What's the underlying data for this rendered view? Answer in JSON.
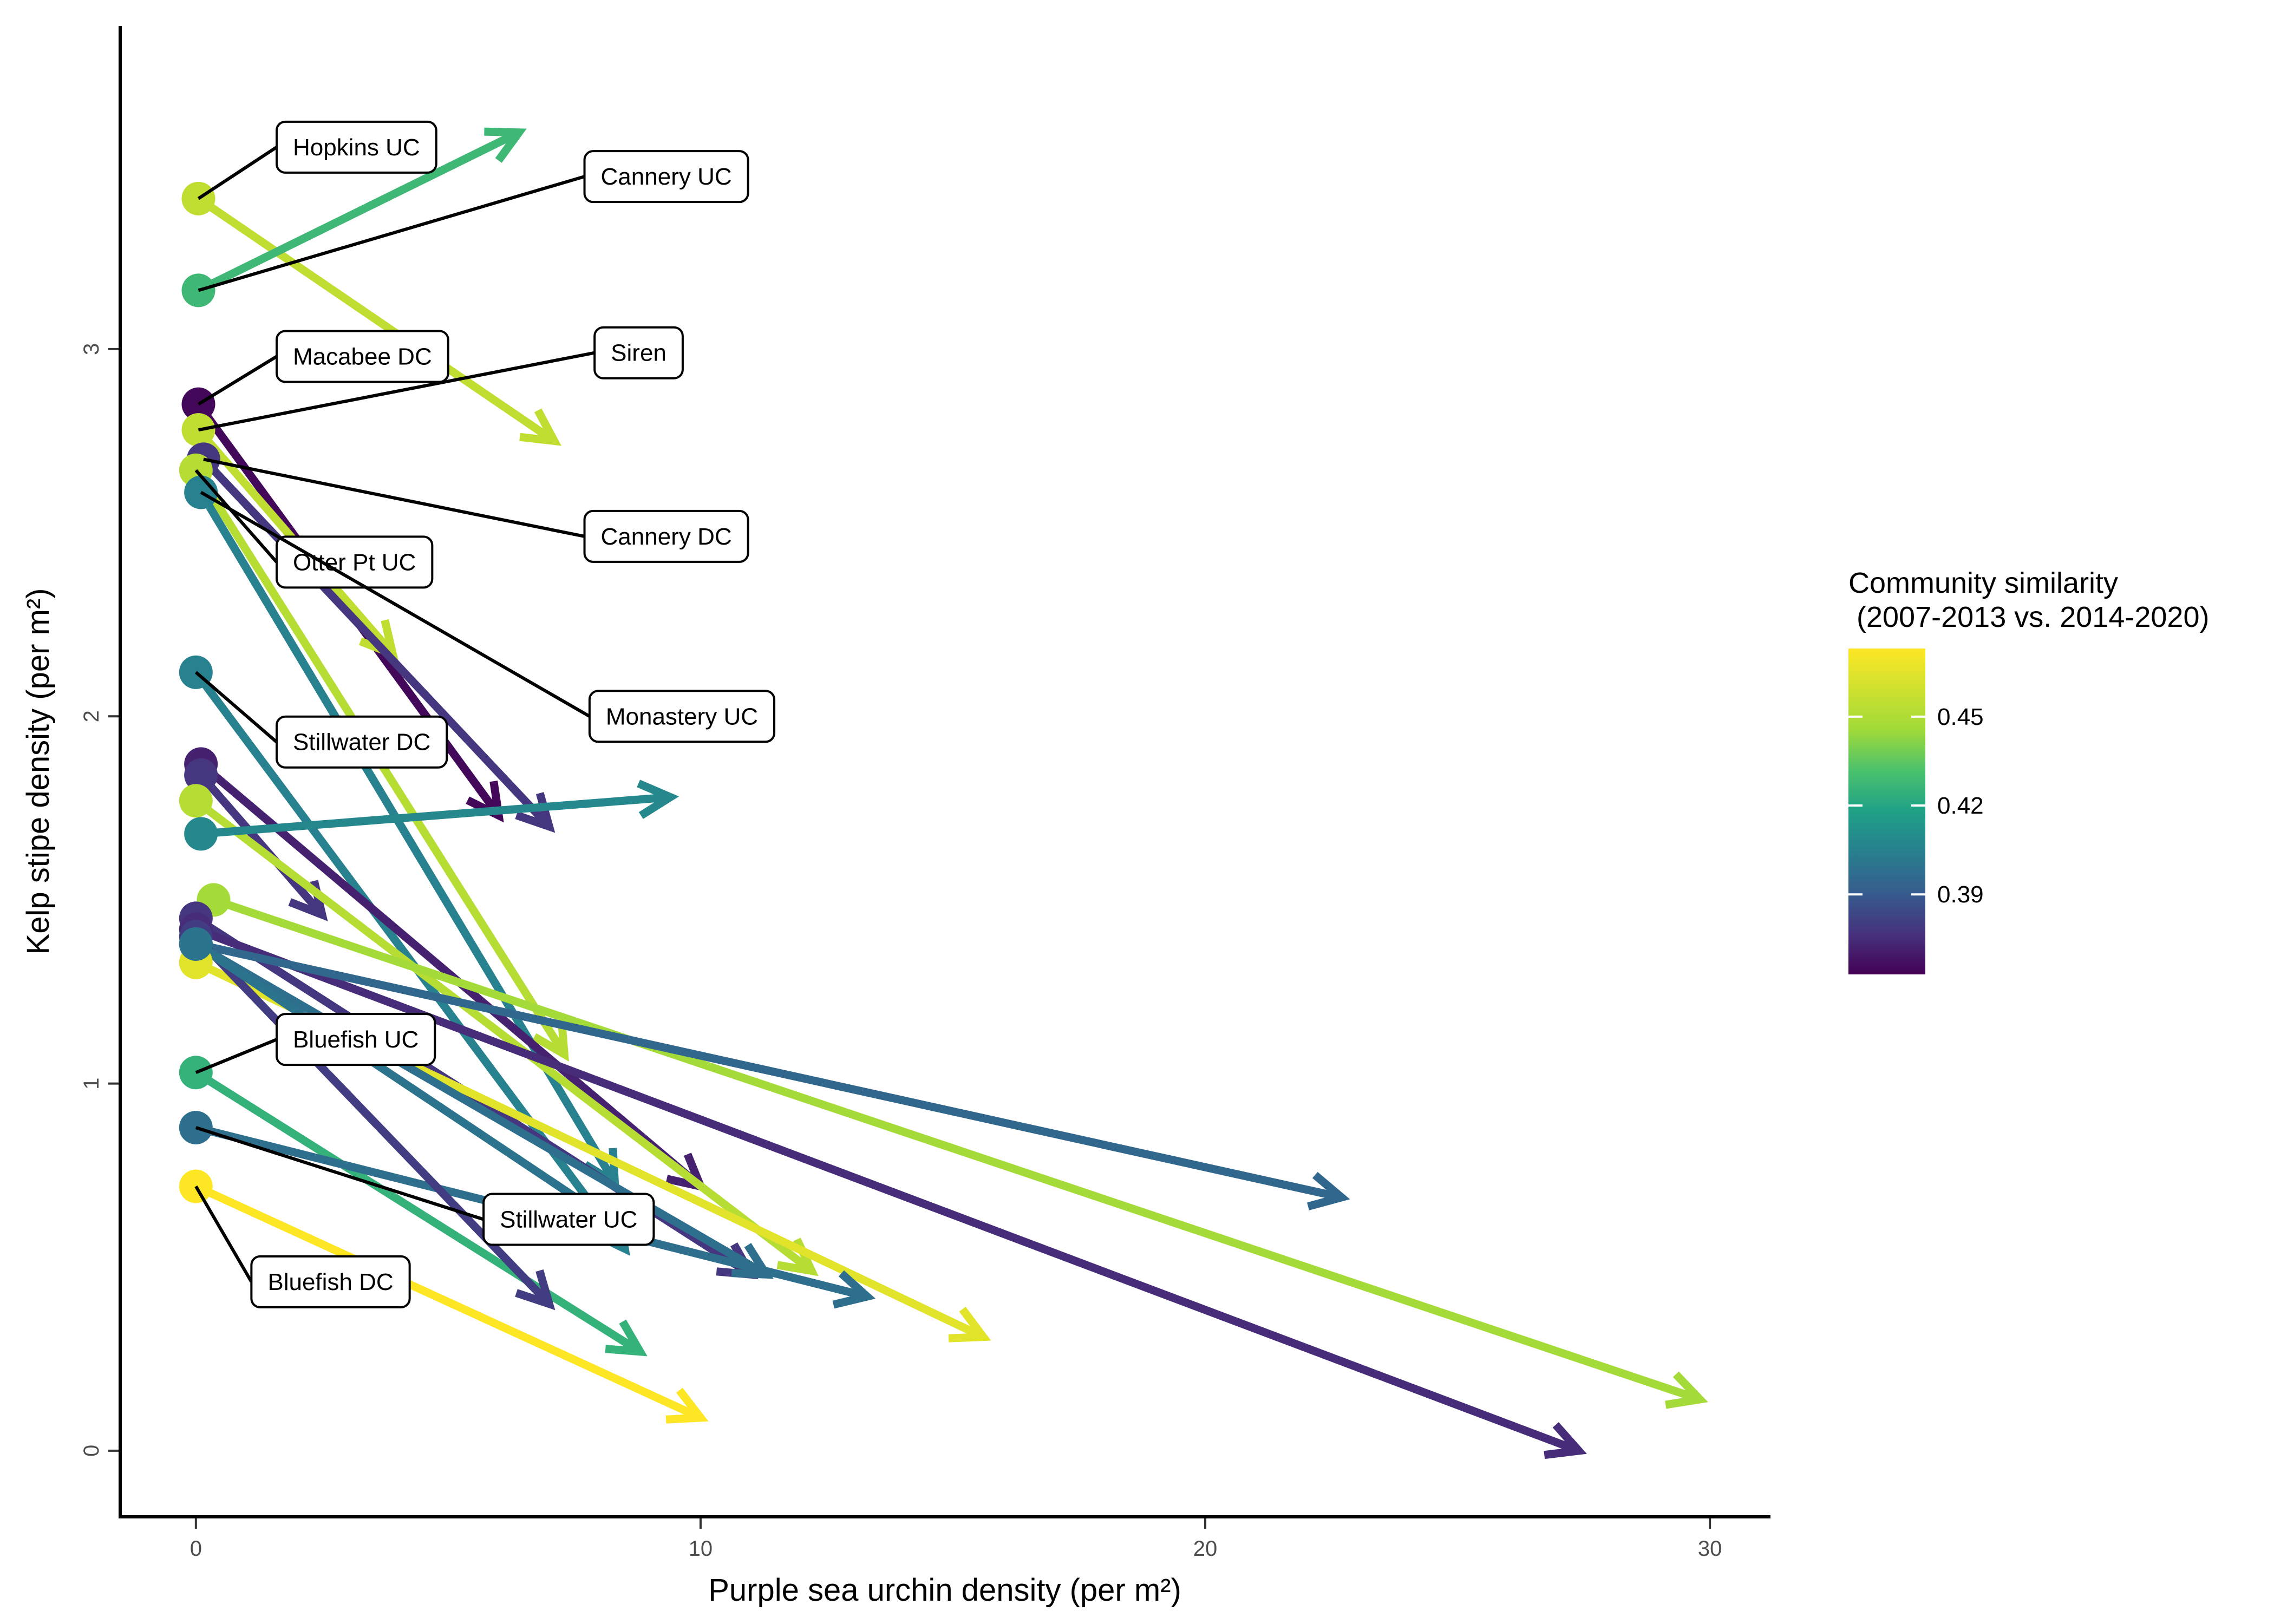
{
  "chart_data": {
    "type": "scatter",
    "subtype": "arrow-segments",
    "title": "",
    "xlabel": "Purple sea urchin density (per m²)",
    "ylabel": "Kelp stipe density (per m²)",
    "xlim": [
      -1.5,
      31.2
    ],
    "ylim": [
      -0.18,
      3.88
    ],
    "x_ticks": [
      0,
      10,
      20,
      30
    ],
    "x_tick_labels": [
      "0",
      "10",
      "20",
      "30"
    ],
    "y_ticks": [
      0,
      1,
      2,
      3
    ],
    "y_tick_labels": [
      "0",
      "1",
      "2",
      "3"
    ],
    "grid": false,
    "legend": {
      "title_line1": "Community similarity",
      "title_line2": " (2007-2013 vs. 2014-2020)",
      "placement": "right",
      "scale": "viridis",
      "min": 0.363,
      "max": 0.473,
      "ticks": [
        0.39,
        0.42,
        0.45
      ],
      "tick_labels": [
        "0.39",
        "0.42",
        "0.45"
      ]
    },
    "sites": [
      {
        "label": "Hopkins UC",
        "x0": 0.05,
        "y0": 3.41,
        "x1": 7.1,
        "y1": 2.75,
        "sim": 0.455
      },
      {
        "label": "Cannery UC",
        "x0": 0.05,
        "y0": 3.16,
        "x1": 6.4,
        "y1": 3.59,
        "sim": 0.428
      },
      {
        "label": "Macabee DC",
        "x0": 0.05,
        "y0": 2.85,
        "x1": 6.0,
        "y1": 1.73,
        "sim": 0.365
      },
      {
        "label": "Siren",
        "x0": 0.05,
        "y0": 2.78,
        "x1": 3.9,
        "y1": 2.17,
        "sim": 0.455
      },
      {
        "label": "Cannery DC",
        "x0": 0.15,
        "y0": 2.7,
        "x1": 7.0,
        "y1": 1.7,
        "sim": 0.378
      },
      {
        "label": "Otter Pt UC",
        "x0": 0.0,
        "y0": 2.67,
        "x1": 7.3,
        "y1": 1.08,
        "sim": 0.452
      },
      {
        "label": "Monastery UC",
        "x0": 0.1,
        "y0": 2.61,
        "x1": 8.3,
        "y1": 0.73,
        "sim": 0.405
      },
      {
        "label": "Stillwater DC",
        "x0": 0.0,
        "y0": 2.12,
        "x1": 8.5,
        "y1": 0.55,
        "sim": 0.405
      },
      {
        "label": "",
        "x0": 0.1,
        "y0": 1.87,
        "x1": 10.0,
        "y1": 0.72,
        "sim": 0.372
      },
      {
        "label": "",
        "x0": 0.1,
        "y0": 1.84,
        "x1": 2.5,
        "y1": 1.46,
        "sim": 0.378
      },
      {
        "label": "",
        "x0": 0.0,
        "y0": 1.77,
        "x1": 12.2,
        "y1": 0.49,
        "sim": 0.452
      },
      {
        "label": "",
        "x0": 0.1,
        "y0": 1.68,
        "x1": 9.4,
        "y1": 1.78,
        "sim": 0.408
      },
      {
        "label": "",
        "x0": 0.35,
        "y0": 1.5,
        "x1": 29.8,
        "y1": 0.14,
        "sim": 0.447
      },
      {
        "label": "",
        "x0": 0.0,
        "y0": 1.45,
        "x1": 11.0,
        "y1": 0.48,
        "sim": 0.378
      },
      {
        "label": "",
        "x0": 0.0,
        "y0": 1.42,
        "x1": 27.4,
        "y1": 0.0,
        "sim": 0.375
      },
      {
        "label": "",
        "x0": 0.0,
        "y0": 1.38,
        "x1": 22.7,
        "y1": 0.69,
        "sim": 0.395
      },
      {
        "label": "",
        "x0": 0.0,
        "y0": 1.33,
        "x1": 15.6,
        "y1": 0.31,
        "sim": 0.465
      },
      {
        "label": "Bluefish UC",
        "x0": 0.0,
        "y0": 1.03,
        "x1": 8.8,
        "y1": 0.27,
        "sim": 0.425
      },
      {
        "label": "Stillwater UC",
        "x0": 0.0,
        "y0": 0.88,
        "x1": 13.3,
        "y1": 0.42,
        "sim": 0.398
      },
      {
        "label": "Bluefish DC",
        "x0": 0.0,
        "y0": 0.72,
        "x1": 10.0,
        "y1": 0.09,
        "sim": 0.473
      },
      {
        "label": "",
        "x0": 0.0,
        "y0": 1.4,
        "x1": 7.0,
        "y1": 0.4,
        "sim": 0.38
      },
      {
        "label": "",
        "x0": 0.0,
        "y0": 1.38,
        "x1": 11.3,
        "y1": 0.48,
        "sim": 0.398
      },
      {
        "label": "",
        "x0": 0.0,
        "y0": 1.38,
        "x1": 8.5,
        "y1": 0.6,
        "sim": 0.4
      }
    ],
    "callouts": [
      {
        "label": "Hopkins UC",
        "px": 0.05,
        "py": 3.41,
        "lx": 1.6,
        "ly": 3.55
      },
      {
        "label": "Cannery UC",
        "px": 0.05,
        "py": 3.16,
        "lx": 7.7,
        "ly": 3.47
      },
      {
        "label": "Macabee DC",
        "px": 0.05,
        "py": 2.85,
        "lx": 1.6,
        "ly": 2.98
      },
      {
        "label": "Siren",
        "px": 0.05,
        "py": 2.78,
        "lx": 7.9,
        "ly": 2.99
      },
      {
        "label": "Cannery DC",
        "px": 0.15,
        "py": 2.7,
        "lx": 7.7,
        "ly": 2.49
      },
      {
        "label": "Otter Pt UC",
        "px": 0.0,
        "py": 2.67,
        "lx": 1.6,
        "ly": 2.42
      },
      {
        "label": "Monastery UC",
        "px": 0.1,
        "py": 2.61,
        "lx": 7.8,
        "ly": 2.0
      },
      {
        "label": "Stillwater DC",
        "px": 0.0,
        "py": 2.12,
        "lx": 1.6,
        "ly": 1.93
      },
      {
        "label": "Bluefish UC",
        "px": 0.0,
        "py": 1.03,
        "lx": 1.6,
        "ly": 1.12
      },
      {
        "label": "Stillwater UC",
        "px": 0.0,
        "py": 0.88,
        "lx": 5.7,
        "ly": 0.63
      },
      {
        "label": "Bluefish DC",
        "px": 0.0,
        "py": 0.72,
        "lx": 1.1,
        "ly": 0.46
      }
    ]
  }
}
